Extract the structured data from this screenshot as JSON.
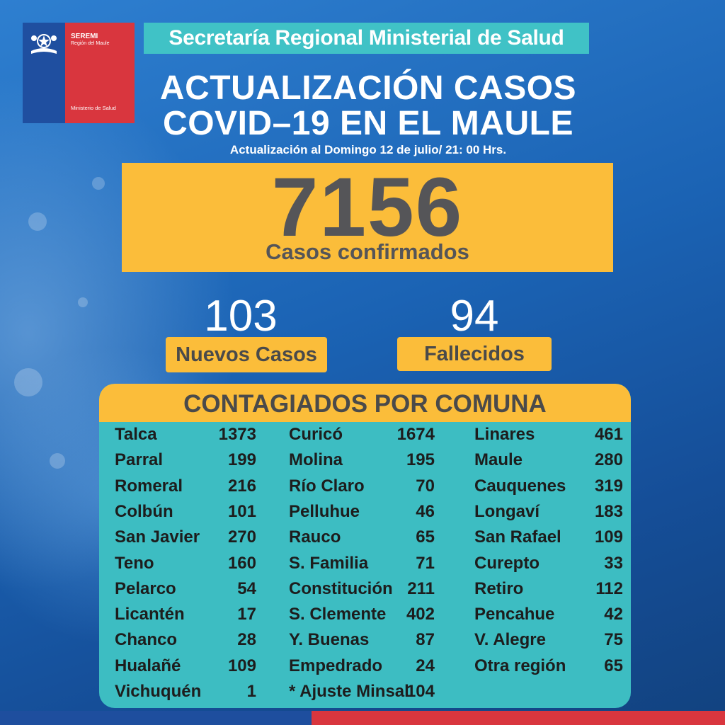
{
  "logo": {
    "seremi": "SEREMI",
    "region": "Región del Maule",
    "ministerio": "Ministerio de Salud"
  },
  "header": {
    "banner": "Secretaría Regional Ministerial de Salud",
    "title_line1": "ACTUALIZACIÓN CASOS",
    "title_line2": "COVID–19 EN EL MAULE",
    "subtitle": "Actualización al Domingo 12 de julio/ 21: 00 Hrs."
  },
  "summary": {
    "confirmed_value": "7156",
    "confirmed_label": "Casos confirmados",
    "new_value": "103",
    "new_label": "Nuevos Casos",
    "deaths_value": "94",
    "deaths_label": "Fallecidos"
  },
  "table": {
    "heading": "CONTAGIADOS POR COMUNA",
    "rows": [
      [
        [
          "Talca",
          "1373"
        ],
        [
          "Curicó",
          "1674"
        ],
        [
          "Linares",
          "461"
        ]
      ],
      [
        [
          "Parral",
          "199"
        ],
        [
          "Molina",
          "195"
        ],
        [
          "Maule",
          "280"
        ]
      ],
      [
        [
          "Romeral",
          "216"
        ],
        [
          "Río Claro",
          "70"
        ],
        [
          "Cauquenes",
          "319"
        ]
      ],
      [
        [
          "Colbún",
          "101"
        ],
        [
          "Pelluhue",
          "46"
        ],
        [
          "Longaví",
          "183"
        ]
      ],
      [
        [
          "San Javier",
          "270"
        ],
        [
          "Rauco",
          "65"
        ],
        [
          "San Rafael",
          "109"
        ]
      ],
      [
        [
          "Teno",
          "160"
        ],
        [
          "S. Familia",
          "71"
        ],
        [
          "Curepto",
          "33"
        ]
      ],
      [
        [
          "Pelarco",
          "54"
        ],
        [
          "Constitución",
          "211"
        ],
        [
          "Retiro",
          "112"
        ]
      ],
      [
        [
          "Licantén",
          "17"
        ],
        [
          "S. Clemente",
          "402"
        ],
        [
          "Pencahue",
          "42"
        ]
      ],
      [
        [
          "Chanco",
          "28"
        ],
        [
          "Y. Buenas",
          "87"
        ],
        [
          "V. Alegre",
          "75"
        ]
      ],
      [
        [
          "Hualañé",
          "109"
        ],
        [
          "Empedrado",
          "24"
        ],
        [
          "Otra región",
          "65"
        ]
      ],
      [
        [
          "Vichuquén",
          "1"
        ],
        [
          "* Ajuste Minsal",
          "104"
        ],
        [
          "",
          ""
        ]
      ]
    ]
  }
}
